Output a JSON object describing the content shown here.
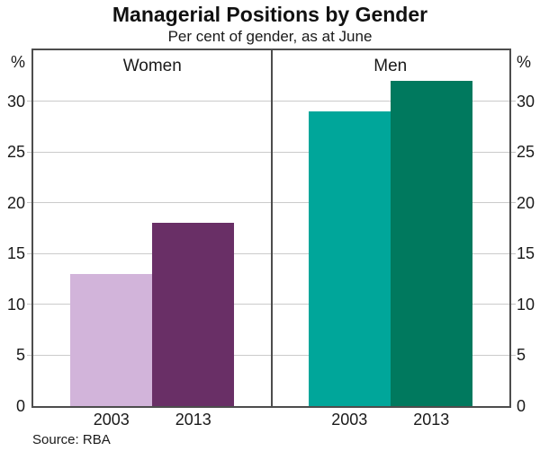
{
  "title": "Managerial Positions by Gender",
  "subtitle": "Per cent of gender, as at June",
  "source": "Source: RBA",
  "axis_unit": "%",
  "chart_data": {
    "type": "bar",
    "title": "Managerial Positions by Gender",
    "subtitle": "Per cent of gender, as at June",
    "source": "Source: RBA",
    "unit": "%",
    "ylim": [
      0,
      35
    ],
    "yticks": [
      0,
      5,
      10,
      15,
      20,
      25,
      30
    ],
    "grid": true,
    "legend": "none",
    "panels": [
      {
        "label": "Women",
        "categories": [
          "2003",
          "2013"
        ],
        "values": [
          13,
          18
        ],
        "colors": [
          "#d2b4da",
          "#692f66"
        ]
      },
      {
        "label": "Men",
        "categories": [
          "2003",
          "2013"
        ],
        "values": [
          29,
          32
        ],
        "colors": [
          "#00a69a",
          "#00795e"
        ]
      }
    ],
    "colors": {
      "frame": "#4d4d4d",
      "gridline": "#cbcbcb",
      "text": "#1a1a1a"
    }
  }
}
